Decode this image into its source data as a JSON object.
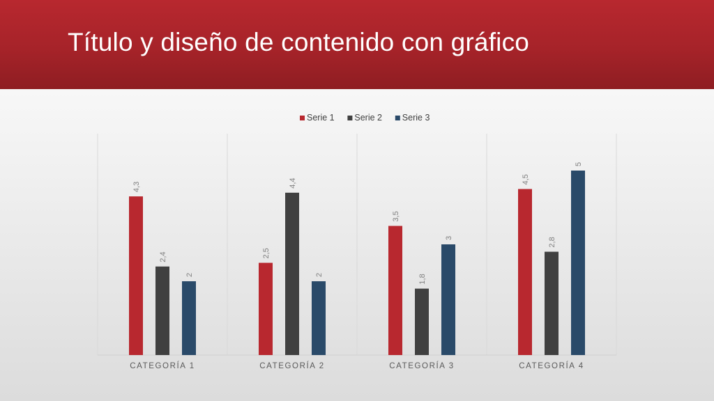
{
  "slide": {
    "title": "Título y diseño de contenido con gráfico"
  },
  "colors": {
    "title_bar": "#a62329",
    "serie1": "#b8282f",
    "serie2": "#404040",
    "serie3": "#2a4a69"
  },
  "chart_data": {
    "type": "bar",
    "categories": [
      "CATEGORÍA 1",
      "CATEGORÍA 2",
      "CATEGORÍA 3",
      "CATEGORÍA 4"
    ],
    "series": [
      {
        "name": "Serie 1",
        "values": [
          4.3,
          2.5,
          3.5,
          4.5
        ],
        "labels": [
          "4,3",
          "2,5",
          "3,5",
          "4,5"
        ],
        "color": "#b8282f"
      },
      {
        "name": "Serie 2",
        "values": [
          2.4,
          4.4,
          1.8,
          2.8
        ],
        "labels": [
          "2,4",
          "4,4",
          "1,8",
          "2,8"
        ],
        "color": "#404040"
      },
      {
        "name": "Serie 3",
        "values": [
          2,
          2,
          3,
          5
        ],
        "labels": [
          "2",
          "2",
          "3",
          "5"
        ],
        "color": "#2a4a69"
      }
    ],
    "ylim": [
      0,
      6
    ],
    "grid": false,
    "legend": "top-center",
    "data_labels": "rotated"
  }
}
